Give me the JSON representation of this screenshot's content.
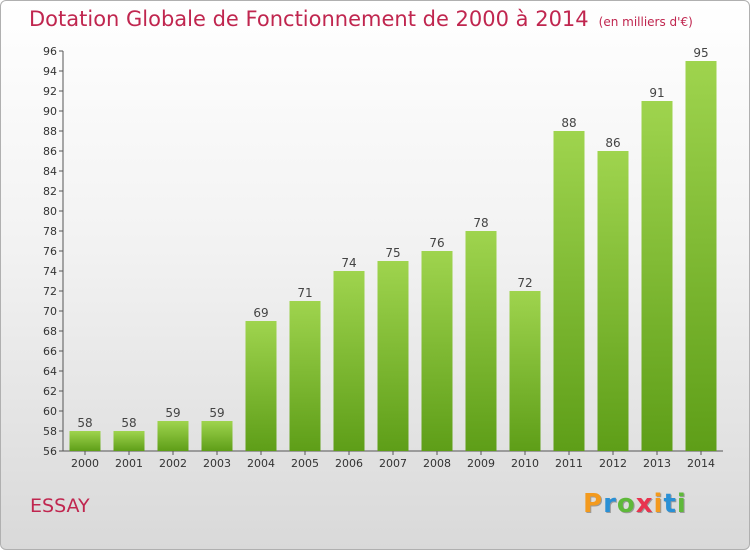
{
  "title": "Dotation Globale de Fonctionnement de 2000 à 2014",
  "subtitle": "(en milliers d'€)",
  "commune": "ESSAY",
  "logo": {
    "letters": [
      "P",
      "r",
      "o",
      "x",
      "i",
      "t",
      "i"
    ],
    "colors": [
      "#f39a1e",
      "#2a90d5",
      "#5fb93a",
      "#e8344f",
      "#f39a1e",
      "#2a90d5",
      "#5fb93a"
    ]
  },
  "colors": {
    "bar_top": "#9fd44e",
    "bar_bottom": "#5e9e18",
    "title": "#c0264f"
  },
  "chart_data": {
    "type": "bar",
    "categories": [
      "2000",
      "2001",
      "2002",
      "2003",
      "2004",
      "2005",
      "2006",
      "2007",
      "2008",
      "2009",
      "2010",
      "2011",
      "2012",
      "2013",
      "2014"
    ],
    "values": [
      58,
      58,
      59,
      59,
      69,
      71,
      74,
      75,
      76,
      78,
      72,
      88,
      86,
      91,
      95
    ],
    "ylim": [
      56,
      96
    ],
    "yticks": [
      56,
      58,
      60,
      62,
      64,
      66,
      68,
      70,
      72,
      74,
      76,
      78,
      80,
      82,
      84,
      86,
      88,
      90,
      92,
      94,
      96
    ],
    "grid": false,
    "xlabel": "",
    "ylabel": ""
  }
}
